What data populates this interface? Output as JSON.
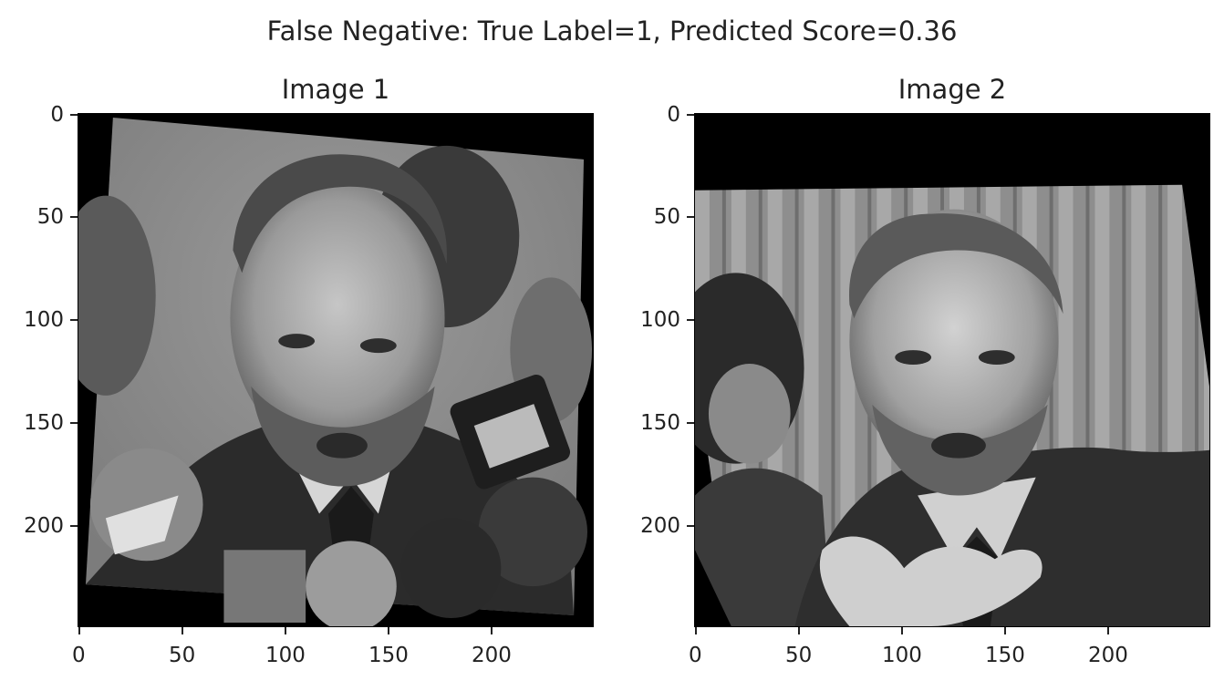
{
  "figure": {
    "title": "False Negative: True Label=1, Predicted Score=0.36"
  },
  "panels": [
    {
      "title": "Image 1",
      "x_ticks": [
        "0",
        "50",
        "100",
        "150",
        "200"
      ],
      "y_ticks": [
        "0",
        "50",
        "100",
        "150",
        "200"
      ],
      "image_content": "grayscale photo of a bearded balding man in suit with microphones"
    },
    {
      "title": "Image 2",
      "x_ticks": [
        "0",
        "50",
        "100",
        "150",
        "200"
      ],
      "y_ticks": [
        "0",
        "50",
        "100",
        "150",
        "200"
      ],
      "image_content": "grayscale photo of a bearded balding man in suit gesturing with hand"
    }
  ],
  "colors": {
    "frame": "#000000",
    "text": "#222222",
    "background": "#ffffff"
  }
}
